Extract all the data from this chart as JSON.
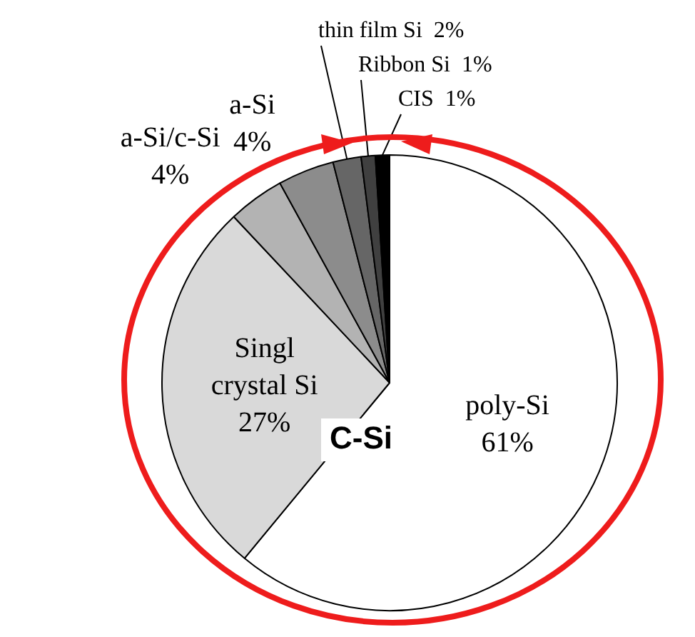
{
  "chart_data": {
    "type": "pie",
    "categories": [
      "poly-Si",
      "Singl crystal Si",
      "a-Si/c-Si",
      "a-Si",
      "thin film Si",
      "Ribbon Si",
      "CIS"
    ],
    "values": [
      61,
      27,
      4,
      4,
      2,
      1,
      1
    ],
    "value_labels": [
      "61%",
      "27%",
      "4%",
      "4%",
      "2%",
      "1%",
      "1%"
    ],
    "colors": [
      "#ffffff",
      "#d9d9d9",
      "#b3b3b3",
      "#8c8c8c",
      "#666666",
      "#404040",
      "#000000"
    ],
    "annotations": [
      "C-Si"
    ],
    "legend": false
  }
}
